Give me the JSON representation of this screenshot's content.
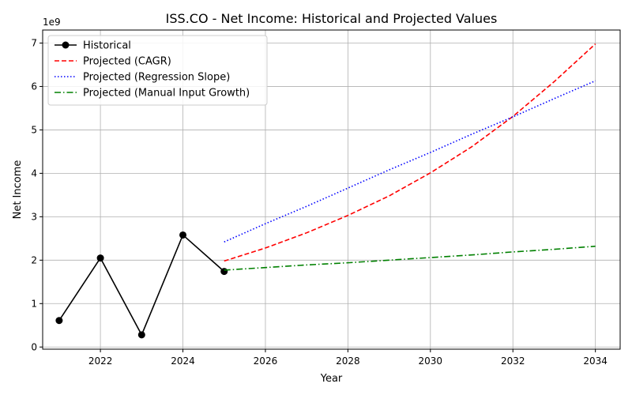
{
  "chart_data": {
    "type": "line",
    "title": "ISS.CO - Net Income: Historical and Projected Values",
    "xlabel": "Year",
    "ylabel": "Net Income",
    "y_offset_label": "1e9",
    "xlim": [
      2020.6,
      2034.6
    ],
    "ylim": [
      -0.05,
      7.3
    ],
    "x_ticks": [
      2022,
      2024,
      2026,
      2028,
      2030,
      2032,
      2034
    ],
    "y_ticks": [
      0,
      1,
      2,
      3,
      4,
      5,
      6,
      7
    ],
    "grid": true,
    "legend_position": "top-left",
    "series": [
      {
        "name": "Historical",
        "color": "#000000",
        "style": "solid",
        "marker": "circle",
        "x": [
          2021,
          2022,
          2023,
          2024,
          2025
        ],
        "y": [
          0.61,
          2.05,
          0.28,
          2.58,
          1.74
        ]
      },
      {
        "name": "Projected (CAGR)",
        "color": "#ff0000",
        "style": "dashed",
        "marker": "none",
        "x": [
          2025,
          2026,
          2027,
          2028,
          2029,
          2030,
          2031,
          2032,
          2033,
          2034
        ],
        "y": [
          1.98,
          2.28,
          2.63,
          3.03,
          3.48,
          4.01,
          4.61,
          5.31,
          6.11,
          6.98
        ]
      },
      {
        "name": "Projected (Regression Slope)",
        "color": "#0000ff",
        "style": "dotted",
        "marker": "none",
        "x": [
          2025,
          2026,
          2027,
          2028,
          2029,
          2030,
          2031,
          2032,
          2033,
          2034
        ],
        "y": [
          2.42,
          2.84,
          3.24,
          3.66,
          4.08,
          4.48,
          4.9,
          5.3,
          5.72,
          6.13
        ]
      },
      {
        "name": "Projected (Manual Input Growth)",
        "color": "#008000",
        "style": "dashdot",
        "marker": "none",
        "x": [
          2025,
          2026,
          2027,
          2028,
          2029,
          2030,
          2031,
          2032,
          2033,
          2034
        ],
        "y": [
          1.77,
          1.83,
          1.89,
          1.94,
          2.0,
          2.06,
          2.12,
          2.19,
          2.25,
          2.32
        ]
      }
    ]
  }
}
